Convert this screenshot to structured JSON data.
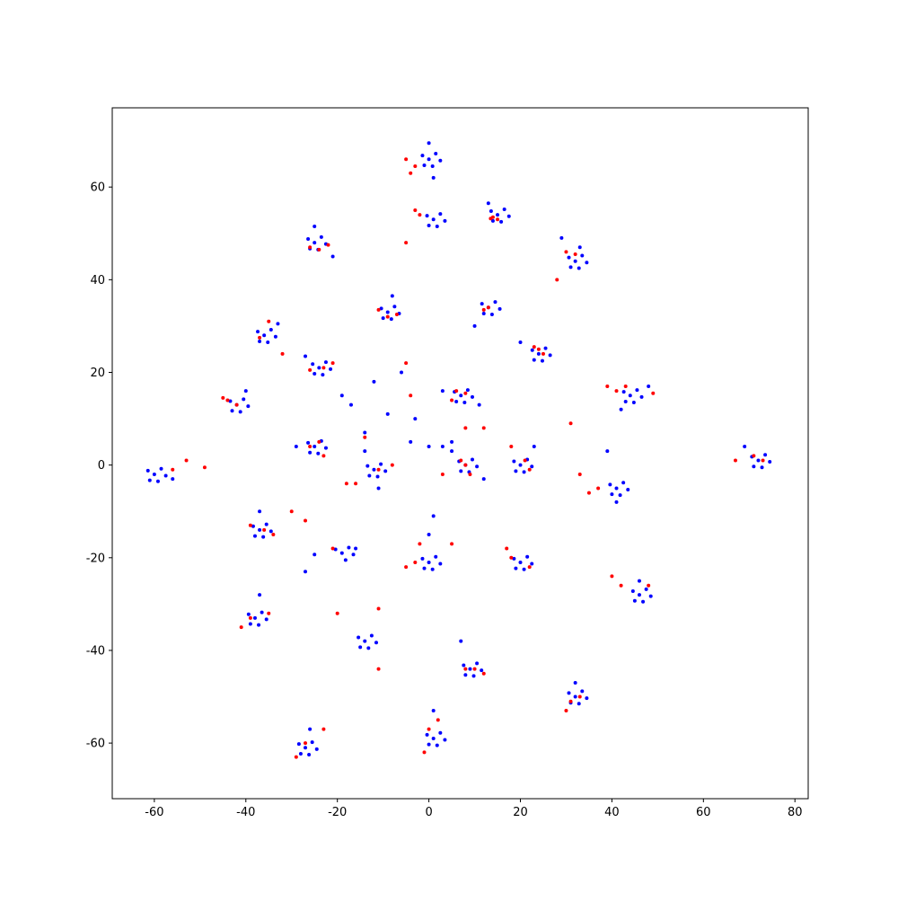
{
  "chart_data": {
    "type": "scatter",
    "xlim": [
      -69.2,
      82.9
    ],
    "ylim": [
      -72.0,
      77.1
    ],
    "xticks": [
      -60,
      -40,
      -20,
      0,
      20,
      40,
      60,
      80
    ],
    "yticks": [
      -60,
      -40,
      -20,
      0,
      20,
      40,
      60
    ],
    "grid": false,
    "series": [
      {
        "color": "#0000ff",
        "x": [
          0,
          1.5,
          -1.4,
          0.8,
          -1,
          2.5,
          0,
          1,
          1,
          2.5,
          -0.4,
          1.8,
          0,
          3.5,
          15,
          16.5,
          13.6,
          15.8,
          14,
          17.5,
          13,
          -25,
          -23.5,
          -26.4,
          -24.2,
          -26,
          -22.5,
          -25,
          -21,
          32,
          33.5,
          30.6,
          32.8,
          31,
          34.5,
          33,
          29,
          -9,
          -7.5,
          -10.4,
          -8.2,
          -10,
          -6.5,
          -8,
          13,
          14.5,
          11.6,
          13.8,
          12,
          15.5,
          10,
          -36,
          -34.5,
          -37.4,
          -35.2,
          -37,
          -33.5,
          -33,
          -24,
          -22.5,
          -25.4,
          -23.2,
          -25,
          -21.5,
          -27,
          24,
          25.5,
          22.6,
          24.8,
          23,
          26.5,
          20,
          -42,
          -40.5,
          -43.4,
          -41.2,
          -43,
          -39.5,
          -40,
          7,
          8.5,
          5.6,
          7.8,
          6,
          9.5,
          3,
          11,
          44,
          45.5,
          42.6,
          44.8,
          43,
          46.5,
          48,
          42,
          -60,
          -58.5,
          -61.4,
          -59.2,
          -61,
          -57.5,
          -56,
          -25,
          -23.5,
          -26.4,
          -24.2,
          -26,
          -22.5,
          -29,
          -12,
          -10.5,
          -13.4,
          -11.2,
          -13,
          -9.5,
          -14,
          -11,
          8,
          9.5,
          6.6,
          8.8,
          7,
          10.5,
          5,
          12,
          20,
          21.5,
          18.6,
          20.8,
          19,
          22.5,
          23,
          72,
          73.5,
          70.6,
          72.8,
          71,
          74.5,
          69,
          41,
          42.5,
          39.6,
          41.8,
          40,
          43.5,
          39,
          41,
          -37,
          -35.5,
          -38.4,
          -36.2,
          -38,
          -34.5,
          -37,
          -19,
          -17.5,
          -20.4,
          -18.2,
          -25,
          -16.5,
          -27,
          -16,
          0,
          1.5,
          -1.4,
          0.8,
          -1,
          2.5,
          1,
          0,
          20,
          21.5,
          18.6,
          20.8,
          19,
          22.5,
          46,
          47.5,
          44.6,
          46.8,
          45,
          48.5,
          46,
          -38,
          -36.5,
          -39.4,
          -37.2,
          -39,
          -35.5,
          -37,
          -14,
          -12.5,
          -15.4,
          -13.2,
          -15,
          -11.5,
          9,
          10.5,
          7.6,
          9.8,
          8,
          11.5,
          7,
          32,
          33.5,
          30.6,
          32.8,
          31,
          34.5,
          32,
          -27,
          -25.5,
          -28.4,
          -26.2,
          -28,
          -24.5,
          -26,
          1,
          2.5,
          -0.4,
          1.8,
          0,
          3.5,
          1,
          -17,
          -9,
          -14,
          -3,
          -19,
          0,
          3,
          -6,
          -12,
          5,
          -4
        ],
        "y": [
          66,
          67.2,
          66.8,
          64.5,
          64.7,
          65.7,
          69.5,
          62,
          53,
          54.2,
          53.8,
          51.5,
          51.7,
          52.7,
          54,
          55.2,
          54.8,
          52.5,
          52.7,
          53.7,
          56.5,
          48,
          49.2,
          48.8,
          46.5,
          46.7,
          47.7,
          51.5,
          45,
          44,
          45.2,
          44.8,
          42.5,
          42.7,
          43.7,
          47,
          49,
          33,
          34.2,
          33.8,
          31.5,
          31.7,
          32.7,
          36.5,
          34,
          35.2,
          34.8,
          32.5,
          32.7,
          33.7,
          30,
          28,
          29.2,
          28.8,
          26.5,
          26.7,
          27.7,
          30.5,
          21,
          22.2,
          21.8,
          19.5,
          19.7,
          20.7,
          23.5,
          24,
          25.2,
          24.8,
          22.5,
          22.7,
          23.7,
          26.5,
          13,
          14.2,
          13.8,
          11.5,
          11.7,
          12.7,
          16,
          15,
          16.2,
          15.8,
          13.5,
          13.7,
          14.7,
          16,
          13,
          15,
          16.2,
          15.8,
          13.5,
          13.7,
          14.7,
          17,
          12,
          -2,
          -0.8,
          -1.2,
          -3.5,
          -3.3,
          -2.3,
          -3,
          4,
          5.2,
          4.8,
          2.5,
          2.7,
          3.7,
          4,
          -1,
          0.2,
          -0.2,
          -2.5,
          -2.3,
          -1.3,
          3,
          -5,
          0,
          1.2,
          0.8,
          -1.5,
          -1.3,
          -0.3,
          3,
          -3,
          0,
          1.2,
          0.8,
          -1.5,
          -1.3,
          -0.3,
          4,
          1,
          2.2,
          1.8,
          -0.5,
          -0.3,
          0.7,
          4,
          -5,
          -3.8,
          -4.2,
          -6.5,
          -6.3,
          -5.3,
          3,
          -8,
          -14,
          -12.8,
          -13.2,
          -15.5,
          -15.3,
          -14.3,
          -10,
          -19,
          -17.8,
          -18.2,
          -20.5,
          -19.3,
          -19.3,
          -23,
          -18,
          -21,
          -19.8,
          -20.2,
          -22.5,
          -22.3,
          -21.3,
          -11,
          -15,
          -21,
          -19.8,
          -20.2,
          -22.5,
          -22.3,
          -21.3,
          -28,
          -26.8,
          -27.2,
          -29.5,
          -29.3,
          -28.3,
          -25,
          -33,
          -31.8,
          -32.2,
          -34.5,
          -34.3,
          -33.3,
          -28,
          -38,
          -36.8,
          -37.2,
          -39.5,
          -39.3,
          -38.3,
          -44,
          -42.8,
          -43.2,
          -45.5,
          -45.3,
          -44.3,
          -38,
          -50,
          -48.8,
          -49.2,
          -51.5,
          -51.3,
          -50.3,
          -47,
          -61,
          -59.8,
          -60.2,
          -62.5,
          -62.3,
          -61.3,
          -57,
          -59,
          -57.8,
          -58.2,
          -60.5,
          -60.3,
          -59.3,
          -53,
          13,
          11,
          7,
          10,
          15,
          4,
          4,
          20,
          18,
          5,
          5
        ]
      },
      {
        "color": "#ff0000",
        "x": [
          -5,
          -3,
          -4,
          -3,
          -2,
          -5,
          14,
          15,
          13.5,
          -26,
          -24,
          -22,
          30,
          32,
          28,
          -9,
          -7,
          -11,
          13,
          12,
          -37,
          -35,
          -32,
          -23,
          -21,
          -26,
          24,
          25,
          23,
          -44,
          -42,
          -45,
          6,
          8,
          5,
          41,
          43,
          39,
          49,
          -56,
          -53,
          -49,
          -26,
          -24,
          -23,
          -11,
          -8,
          -16,
          8,
          9,
          7,
          21,
          18,
          22,
          71,
          73,
          67,
          37,
          35,
          33,
          -36,
          -34,
          -39,
          -21,
          -27,
          -30,
          -3,
          -5,
          -2,
          5,
          18,
          22,
          17,
          42,
          40,
          48,
          -39,
          -41,
          -35,
          -20,
          -11,
          -11,
          10,
          12,
          8,
          31,
          30,
          33,
          -27,
          -29,
          -23,
          0,
          2,
          -1,
          -5,
          -14,
          -4,
          3,
          12,
          31,
          -18,
          8
        ],
        "y": [
          66,
          64.5,
          63,
          55,
          54,
          48,
          53.5,
          53,
          53.2,
          47,
          46.5,
          47.5,
          46,
          45.5,
          40,
          32,
          32.5,
          33.5,
          34,
          33.5,
          27.5,
          31,
          24,
          21,
          22,
          20.5,
          25,
          24,
          25.5,
          14,
          13,
          14.5,
          16,
          15.5,
          14,
          16,
          17,
          17,
          15.5,
          -1,
          1,
          -0.5,
          4,
          5,
          2,
          -1,
          0,
          -4,
          0,
          -2,
          1,
          1,
          4,
          -1,
          2,
          1,
          1,
          -5,
          -6,
          -2,
          -14,
          -15,
          -13,
          -18,
          -12,
          -10,
          -21,
          -22,
          -17,
          -17,
          -20,
          -22,
          -18,
          -26,
          -24,
          -26,
          -33,
          -35,
          -32,
          -32,
          -31,
          -44,
          -44,
          -45,
          -44,
          -51,
          -53,
          -50,
          -60,
          -63,
          -57,
          -57,
          -55,
          -62,
          22,
          6,
          15,
          -2,
          8,
          9,
          -4,
          8
        ]
      }
    ]
  }
}
